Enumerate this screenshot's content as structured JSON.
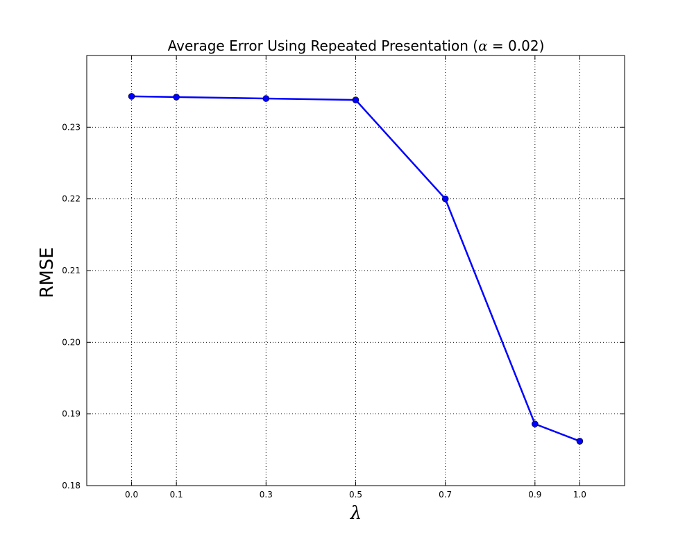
{
  "chart_data": {
    "type": "line",
    "title_prefix": "Average Error Using Repeated Presentation (",
    "title_symbol": "α",
    "title_suffix": " = 0.02)",
    "xlabel": "λ",
    "ylabel": "RMSE",
    "x": [
      0.0,
      0.1,
      0.3,
      0.5,
      0.7,
      0.9,
      1.0
    ],
    "series": [
      {
        "values": [
          0.2343,
          0.2342,
          0.234,
          0.2338,
          0.22,
          0.1886,
          0.1862
        ]
      }
    ],
    "x_ticks": [
      "0.0",
      "0.1",
      "0.3",
      "0.5",
      "0.7",
      "0.9",
      "1.0"
    ],
    "y_ticks": [
      "0.18",
      "0.19",
      "0.20",
      "0.21",
      "0.22",
      "0.23"
    ],
    "xlim": [
      -0.1,
      1.1
    ],
    "ylim": [
      0.18,
      0.24
    ],
    "grid": true,
    "line_color": "#0000ff",
    "marker_color": "#0000ff"
  }
}
